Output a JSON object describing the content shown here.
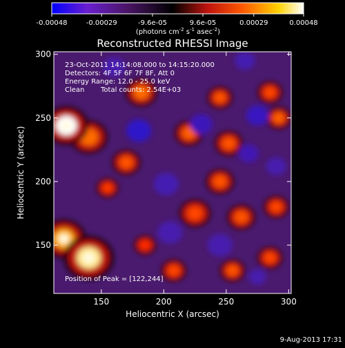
{
  "colorbar": {
    "ticks": [
      "-0.00048",
      "-0.00029",
      "-9.6e-05",
      "9.6e-05",
      "0.00029",
      "0.00048"
    ],
    "tick_values": [
      -0.00048,
      -0.00029,
      -9.6e-05,
      9.6e-05,
      0.00029,
      0.00048
    ],
    "range": [
      -0.00048,
      0.00048
    ],
    "unit_label": "(photons cm",
    "unit_exp1": "-2",
    "unit_mid": " s",
    "unit_exp2": "-1",
    "unit_mid2": " asec",
    "unit_exp3": "-2",
    "unit_end": ")",
    "colors": [
      "#0000ff",
      "#8a2be2",
      "#5a1f7a",
      "#000000",
      "#c0140f",
      "#ff5a00",
      "#ffd200",
      "#ffffff"
    ]
  },
  "chart_data": {
    "type": "heatmap",
    "title": "Reconstructed RHESSI Image",
    "xlabel": "Heliocentric X (arcsec)",
    "ylabel": "Heliocentric Y (arcsec)",
    "xlim": [
      112,
      302
    ],
    "ylim": [
      112,
      302
    ],
    "xticks": [
      150,
      200,
      250,
      300
    ],
    "yticks": [
      150,
      200,
      250,
      300
    ],
    "annotations": {
      "time": "23-Oct-2011 14:14:08.000 to 14:15:20.000",
      "detectors": "Detectors: 4F 5F 6F 7F 8F, Att 0",
      "energy": "Energy Range: 12.0 - 25.0 keV",
      "method": "Clean",
      "counts": "Total counts: 2.54E+03",
      "peak": "Position of Peak = [122,244]"
    },
    "peak": [
      122,
      244
    ],
    "sources": [
      {
        "x": 122,
        "y": 244,
        "value": 0.00048,
        "r": 14
      },
      {
        "x": 140,
        "y": 140,
        "value": 0.00044,
        "r": 16
      },
      {
        "x": 120,
        "y": 155,
        "value": 0.00034,
        "r": 14
      },
      {
        "x": 140,
        "y": 235,
        "value": 0.00022,
        "r": 12
      },
      {
        "x": 182,
        "y": 270,
        "value": 0.00022,
        "r": 10
      },
      {
        "x": 170,
        "y": 215,
        "value": 0.00018,
        "r": 9
      },
      {
        "x": 220,
        "y": 238,
        "value": 0.0002,
        "r": 9
      },
      {
        "x": 245,
        "y": 266,
        "value": 0.00018,
        "r": 8
      },
      {
        "x": 252,
        "y": 230,
        "value": 0.00018,
        "r": 9
      },
      {
        "x": 285,
        "y": 270,
        "value": 0.00016,
        "r": 8
      },
      {
        "x": 292,
        "y": 250,
        "value": 0.0002,
        "r": 8
      },
      {
        "x": 245,
        "y": 200,
        "value": 0.00018,
        "r": 9
      },
      {
        "x": 225,
        "y": 175,
        "value": 0.00016,
        "r": 10
      },
      {
        "x": 262,
        "y": 172,
        "value": 0.00018,
        "r": 9
      },
      {
        "x": 208,
        "y": 130,
        "value": 0.00016,
        "r": 8
      },
      {
        "x": 255,
        "y": 130,
        "value": 0.00018,
        "r": 8
      },
      {
        "x": 285,
        "y": 140,
        "value": 0.00016,
        "r": 8
      },
      {
        "x": 290,
        "y": 180,
        "value": 0.00016,
        "r": 8
      },
      {
        "x": 185,
        "y": 150,
        "value": 0.00012,
        "r": 7
      },
      {
        "x": 155,
        "y": 195,
        "value": 0.00014,
        "r": 7
      },
      {
        "x": 180,
        "y": 240,
        "value": -0.00032,
        "r": 10
      },
      {
        "x": 230,
        "y": 245,
        "value": -0.00022,
        "r": 9
      },
      {
        "x": 275,
        "y": 252,
        "value": -0.00026,
        "r": 9
      },
      {
        "x": 268,
        "y": 222,
        "value": -0.00018,
        "r": 8
      },
      {
        "x": 202,
        "y": 198,
        "value": -0.00016,
        "r": 10
      },
      {
        "x": 245,
        "y": 150,
        "value": -0.00014,
        "r": 10
      },
      {
        "x": 205,
        "y": 160,
        "value": -0.00014,
        "r": 10
      },
      {
        "x": 290,
        "y": 212,
        "value": -0.00014,
        "r": 8
      },
      {
        "x": 265,
        "y": 295,
        "value": -0.00016,
        "r": 8
      },
      {
        "x": 160,
        "y": 290,
        "value": -0.00012,
        "r": 9
      },
      {
        "x": 275,
        "y": 125,
        "value": -0.00014,
        "r": 7
      }
    ]
  },
  "footer": {
    "date": "9-Aug-2013 17:31"
  }
}
